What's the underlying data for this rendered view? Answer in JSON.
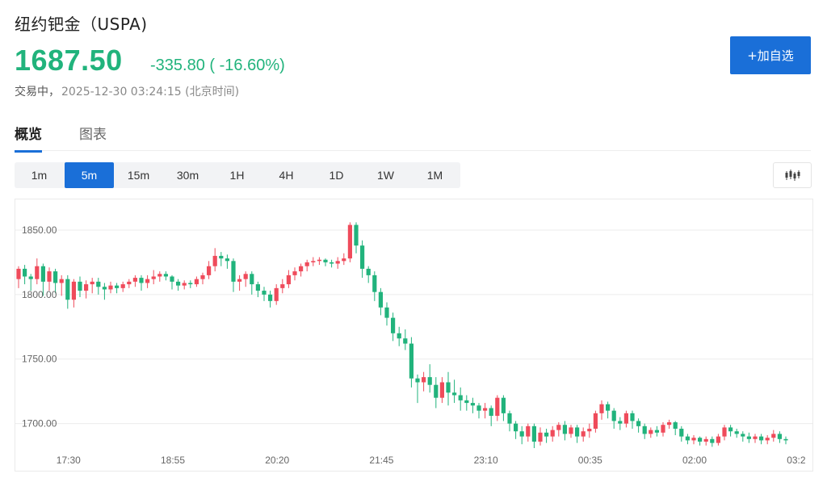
{
  "header": {
    "title": "纽约钯金（USPA)",
    "price": "1687.50",
    "change": "-335.80 ( -16.60%)",
    "status_label": "交易中，",
    "timestamp": "2025-12-30 03:24:15 (北京时间)",
    "add_button_label": "+加自选"
  },
  "tabs": [
    {
      "label": "概览",
      "active": true
    },
    {
      "label": "图表",
      "active": false
    }
  ],
  "periods": [
    {
      "label": "1m"
    },
    {
      "label": "5m",
      "active": true
    },
    {
      "label": "15m"
    },
    {
      "label": "30m"
    },
    {
      "label": "1H"
    },
    {
      "label": "4H"
    },
    {
      "label": "1D"
    },
    {
      "label": "1W"
    },
    {
      "label": "1M"
    }
  ],
  "chart_type_icon": "candlestick-icon",
  "colors": {
    "up": "#ef4b5b",
    "down": "#21b37c",
    "accent": "#1a6fd8"
  },
  "chart_data": {
    "type": "candlestick",
    "y_ticks": [
      "1850.00",
      "1800.00",
      "1750.00",
      "1700.00"
    ],
    "y_tick_values": [
      1850,
      1800,
      1750,
      1700
    ],
    "ylim": [
      1681,
      1870
    ],
    "x_ticks": [
      "17:30",
      "18:55",
      "20:20",
      "21:45",
      "23:10",
      "00:35",
      "02:00",
      "03:2"
    ],
    "x_tick_indices": [
      8,
      25,
      42,
      59,
      76,
      93,
      110,
      127
    ],
    "grid": true,
    "candles": [
      [
        1812,
        1820,
        1810,
        1822,
        1805
      ],
      [
        1820,
        1814,
        1811,
        1823,
        1808
      ],
      [
        1814,
        1812,
        1806,
        1816,
        1803
      ],
      [
        1812,
        1822,
        1809,
        1828,
        1808
      ],
      [
        1822,
        1810,
        1805,
        1824,
        1799
      ],
      [
        1810,
        1818,
        1808,
        1821,
        1803
      ],
      [
        1818,
        1809,
        1804,
        1820,
        1801
      ],
      [
        1809,
        1812,
        1802,
        1815,
        1799
      ],
      [
        1812,
        1796,
        1791,
        1815,
        1789
      ],
      [
        1796,
        1810,
        1794,
        1812,
        1790
      ],
      [
        1810,
        1803,
        1800,
        1814,
        1798
      ],
      [
        1803,
        1808,
        1800,
        1811,
        1797
      ],
      [
        1808,
        1810,
        1803,
        1813,
        1801
      ],
      [
        1810,
        1806,
        1802,
        1813,
        1800
      ],
      [
        1806,
        1804,
        1801,
        1809,
        1796
      ],
      [
        1804,
        1807,
        1802,
        1810,
        1801
      ],
      [
        1807,
        1805,
        1803,
        1809,
        1801
      ],
      [
        1805,
        1808,
        1803,
        1810,
        1802
      ],
      [
        1808,
        1810,
        1806,
        1812,
        1805
      ],
      [
        1810,
        1813,
        1809,
        1815,
        1806
      ],
      [
        1813,
        1809,
        1805,
        1815,
        1803
      ],
      [
        1809,
        1812,
        1807,
        1815,
        1805
      ],
      [
        1812,
        1814,
        1810,
        1819,
        1808
      ],
      [
        1814,
        1816,
        1812,
        1818,
        1810
      ],
      [
        1816,
        1814,
        1812,
        1818,
        1811
      ],
      [
        1814,
        1810,
        1806,
        1815,
        1804
      ],
      [
        1810,
        1807,
        1804,
        1812,
        1803
      ],
      [
        1807,
        1809,
        1805,
        1811,
        1804
      ],
      [
        1809,
        1808,
        1806,
        1811,
        1805
      ],
      [
        1808,
        1812,
        1807,
        1814,
        1806
      ],
      [
        1812,
        1815,
        1810,
        1817,
        1808
      ],
      [
        1815,
        1822,
        1813,
        1826,
        1812
      ],
      [
        1822,
        1830,
        1820,
        1836,
        1818
      ],
      [
        1830,
        1828,
        1825,
        1833,
        1822
      ],
      [
        1828,
        1826,
        1822,
        1831,
        1820
      ],
      [
        1826,
        1810,
        1804,
        1828,
        1802
      ],
      [
        1810,
        1812,
        1805,
        1815,
        1803
      ],
      [
        1812,
        1816,
        1808,
        1818,
        1806
      ],
      [
        1816,
        1808,
        1802,
        1818,
        1800
      ],
      [
        1808,
        1803,
        1800,
        1810,
        1798
      ],
      [
        1803,
        1800,
        1798,
        1806,
        1795
      ],
      [
        1800,
        1795,
        1792,
        1803,
        1790
      ],
      [
        1795,
        1805,
        1793,
        1808,
        1792
      ],
      [
        1805,
        1808,
        1803,
        1812,
        1801
      ],
      [
        1808,
        1815,
        1806,
        1819,
        1805
      ],
      [
        1815,
        1818,
        1813,
        1821,
        1811
      ],
      [
        1818,
        1822,
        1816,
        1824,
        1814
      ],
      [
        1822,
        1825,
        1820,
        1827,
        1818
      ],
      [
        1825,
        1826,
        1823,
        1829,
        1822
      ],
      [
        1826,
        1827,
        1824,
        1829,
        1823
      ],
      [
        1827,
        1825,
        1823,
        1828,
        1822
      ],
      [
        1825,
        1824,
        1822,
        1827,
        1821
      ],
      [
        1824,
        1826,
        1823,
        1829,
        1820
      ],
      [
        1826,
        1828,
        1825,
        1832,
        1823
      ],
      [
        1828,
        1854,
        1826,
        1856,
        1825
      ],
      [
        1854,
        1838,
        1834,
        1856,
        1832
      ],
      [
        1838,
        1820,
        1815,
        1842,
        1813
      ],
      [
        1820,
        1815,
        1812,
        1822,
        1809
      ],
      [
        1815,
        1802,
        1797,
        1818,
        1795
      ],
      [
        1802,
        1790,
        1786,
        1805,
        1784
      ],
      [
        1790,
        1782,
        1778,
        1794,
        1776
      ],
      [
        1782,
        1770,
        1766,
        1786,
        1764
      ],
      [
        1770,
        1766,
        1762,
        1775,
        1760
      ],
      [
        1766,
        1762,
        1758,
        1773,
        1757
      ],
      [
        1762,
        1735,
        1730,
        1767,
        1728
      ],
      [
        1735,
        1732,
        1719,
        1738,
        1716
      ],
      [
        1732,
        1736,
        1728,
        1740,
        1725
      ],
      [
        1736,
        1730,
        1726,
        1746,
        1724
      ],
      [
        1730,
        1720,
        1714,
        1736,
        1712
      ],
      [
        1720,
        1732,
        1718,
        1736,
        1716
      ],
      [
        1732,
        1724,
        1716,
        1740,
        1714
      ],
      [
        1724,
        1722,
        1718,
        1734,
        1716
      ],
      [
        1722,
        1718,
        1712,
        1728,
        1710
      ],
      [
        1718,
        1716,
        1712,
        1722,
        1710
      ],
      [
        1716,
        1714,
        1710,
        1720,
        1708
      ],
      [
        1714,
        1710,
        1706,
        1716,
        1704
      ],
      [
        1710,
        1712,
        1706,
        1716,
        1704
      ],
      [
        1712,
        1706,
        1700,
        1714,
        1698
      ],
      [
        1706,
        1720,
        1704,
        1722,
        1702
      ],
      [
        1720,
        1708,
        1704,
        1722,
        1702
      ],
      [
        1708,
        1700,
        1696,
        1710,
        1694
      ],
      [
        1700,
        1694,
        1690,
        1702,
        1688
      ],
      [
        1694,
        1690,
        1686,
        1698,
        1684
      ],
      [
        1690,
        1698,
        1688,
        1700,
        1686
      ],
      [
        1698,
        1686,
        1682,
        1700,
        1681
      ],
      [
        1686,
        1693,
        1684,
        1697,
        1683
      ],
      [
        1693,
        1690,
        1687,
        1696,
        1685
      ],
      [
        1690,
        1695,
        1688,
        1698,
        1686
      ],
      [
        1695,
        1699,
        1692,
        1701,
        1690
      ],
      [
        1699,
        1692,
        1689,
        1702,
        1687
      ],
      [
        1692,
        1697,
        1690,
        1699,
        1689
      ],
      [
        1697,
        1690,
        1687,
        1699,
        1685
      ],
      [
        1690,
        1694,
        1688,
        1697,
        1686
      ],
      [
        1694,
        1696,
        1691,
        1700,
        1689
      ],
      [
        1696,
        1708,
        1694,
        1710,
        1693
      ],
      [
        1708,
        1715,
        1705,
        1718,
        1703
      ],
      [
        1715,
        1710,
        1706,
        1717,
        1704
      ],
      [
        1710,
        1702,
        1698,
        1712,
        1696
      ],
      [
        1702,
        1700,
        1697,
        1705,
        1695
      ],
      [
        1700,
        1708,
        1698,
        1710,
        1697
      ],
      [
        1708,
        1702,
        1698,
        1710,
        1696
      ],
      [
        1702,
        1698,
        1695,
        1704,
        1693
      ],
      [
        1698,
        1692,
        1690,
        1700,
        1688
      ],
      [
        1692,
        1695,
        1690,
        1697,
        1689
      ],
      [
        1695,
        1693,
        1691,
        1698,
        1690
      ],
      [
        1693,
        1699,
        1691,
        1701,
        1690
      ],
      [
        1699,
        1701,
        1697,
        1703,
        1696
      ],
      [
        1701,
        1696,
        1693,
        1702,
        1691
      ],
      [
        1696,
        1690,
        1688,
        1698,
        1686
      ],
      [
        1690,
        1687,
        1685,
        1692,
        1684
      ],
      [
        1687,
        1689,
        1685,
        1691,
        1684
      ],
      [
        1689,
        1686,
        1684,
        1690,
        1683
      ],
      [
        1686,
        1688,
        1684,
        1690,
        1683
      ],
      [
        1688,
        1685,
        1683,
        1690,
        1682
      ],
      [
        1685,
        1690,
        1684,
        1692,
        1683
      ],
      [
        1690,
        1697,
        1688,
        1699,
        1687
      ],
      [
        1697,
        1694,
        1692,
        1699,
        1690
      ],
      [
        1694,
        1692,
        1690,
        1696,
        1689
      ],
      [
        1692,
        1690,
        1688,
        1694,
        1686
      ],
      [
        1690,
        1688,
        1686,
        1693,
        1685
      ],
      [
        1688,
        1690,
        1686,
        1692,
        1685
      ],
      [
        1690,
        1687,
        1685,
        1692,
        1684
      ],
      [
        1687,
        1689,
        1685,
        1691,
        1684
      ],
      [
        1689,
        1692,
        1687,
        1695,
        1686
      ],
      [
        1692,
        1688,
        1686,
        1694,
        1685
      ],
      [
        1688,
        1687,
        1685,
        1690,
        1684
      ]
    ]
  }
}
